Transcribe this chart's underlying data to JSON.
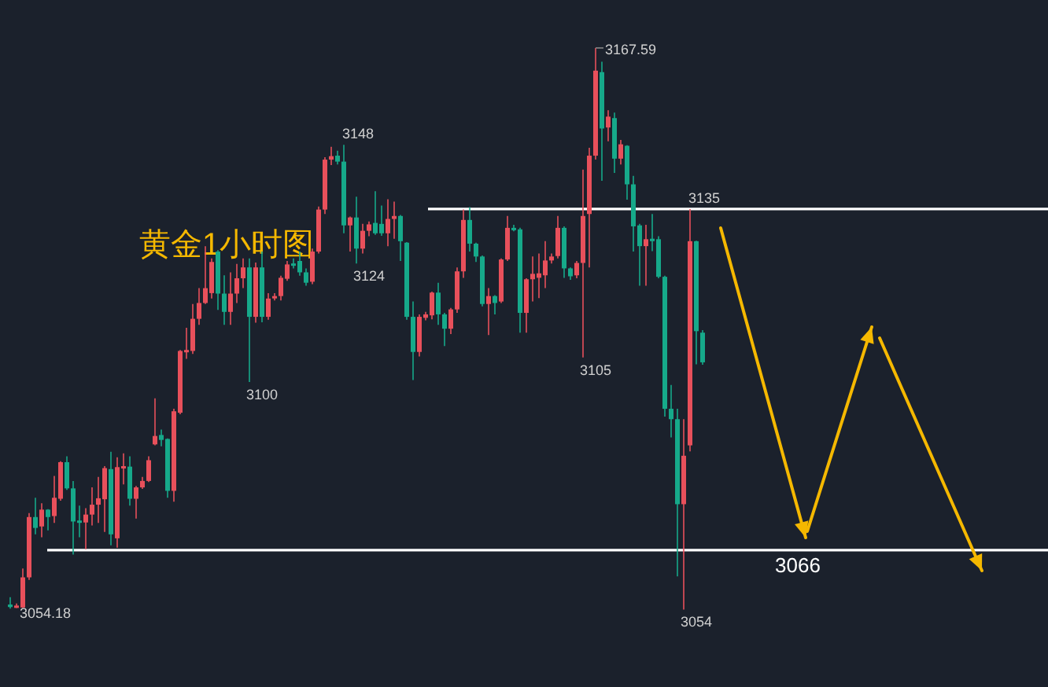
{
  "chart_data": {
    "type": "candlestick",
    "title": "黄金1小时图",
    "categories": [
      null,
      null,
      null,
      null,
      null,
      null,
      null,
      null,
      null,
      null,
      null,
      null,
      null,
      null,
      null,
      null,
      null,
      null,
      null,
      null,
      null,
      null,
      null,
      null,
      null,
      null,
      null,
      null,
      null,
      null,
      null,
      null,
      null,
      null,
      null,
      null,
      null,
      null,
      null,
      null,
      null,
      null,
      null,
      null,
      null,
      null,
      null,
      null,
      null,
      null,
      null,
      null,
      null,
      null,
      null,
      null,
      null,
      null,
      null,
      null,
      null,
      null,
      null,
      null,
      null,
      null,
      null,
      null,
      null,
      null,
      null,
      null,
      null,
      null,
      null,
      null,
      null,
      null,
      null,
      null,
      null,
      null,
      null,
      null,
      null,
      null,
      null,
      null,
      null,
      null,
      null,
      null,
      null,
      null,
      null,
      null,
      null,
      null,
      null,
      null,
      null,
      null,
      null,
      null,
      null,
      null,
      null,
      null,
      null,
      null,
      null
    ],
    "ohlc": [
      [
        3055,
        3056.5,
        3054.18,
        3054.5
      ],
      [
        3054.5,
        3055.2,
        3054.3,
        3054.8
      ],
      [
        3054.4,
        3062.3,
        3054.3,
        3060.5
      ],
      [
        3060.5,
        3073.5,
        3060,
        3072.7
      ],
      [
        3072.7,
        3076.6,
        3069.2,
        3070.5
      ],
      [
        3070.8,
        3075.5,
        3068.6,
        3074.2
      ],
      [
        3074.2,
        3074.3,
        3070,
        3072.7
      ],
      [
        3072.9,
        3081,
        3071.5,
        3076.6
      ],
      [
        3076.4,
        3084,
        3076,
        3083.8
      ],
      [
        3083.8,
        3085,
        3078.2,
        3078.5
      ],
      [
        3078.5,
        3080,
        3065.1,
        3071.8
      ],
      [
        3072,
        3075,
        3068.6,
        3071.8
      ],
      [
        3071.6,
        3074.5,
        3066.2,
        3073.2
      ],
      [
        3073.2,
        3078.7,
        3071,
        3075.2
      ],
      [
        3075.2,
        3080.8,
        3071.5,
        3076.5
      ],
      [
        3076.3,
        3083,
        3069.7,
        3082.6
      ],
      [
        3082.4,
        3085.9,
        3067,
        3069.2
      ],
      [
        3068.4,
        3084.8,
        3066.5,
        3082.8
      ],
      [
        3082.8,
        3085.6,
        3079.3,
        3083
      ],
      [
        3082.9,
        3085,
        3075,
        3076.4
      ],
      [
        3076.4,
        3079,
        3072.4,
        3078.7
      ],
      [
        3078.7,
        3080.8,
        3078.4,
        3080
      ],
      [
        3080,
        3085,
        3079.8,
        3084.2
      ],
      [
        3087.4,
        3096.7,
        3087.2,
        3089.1
      ],
      [
        3089.3,
        3090.4,
        3087,
        3088.3
      ],
      [
        3088.5,
        3088.6,
        3076.6,
        3078
      ],
      [
        3078,
        3094.6,
        3075.8,
        3094.1
      ],
      [
        3093.8,
        3106.5,
        3093.5,
        3106.3
      ],
      [
        3106.2,
        3111,
        3104.7,
        3106.5
      ],
      [
        3106.3,
        3115.8,
        3105.7,
        3112.8
      ],
      [
        3112.8,
        3119,
        3111.6,
        3116
      ],
      [
        3116,
        3127.5,
        3115.8,
        3119
      ],
      [
        3118,
        3125,
        3116.9,
        3124.3
      ],
      [
        3126.4,
        3126.7,
        3114.6,
        3117.9
      ],
      [
        3117.9,
        3121.6,
        3111.6,
        3114.2
      ],
      [
        3114.2,
        3122.2,
        3111.6,
        3117.9
      ],
      [
        3117.9,
        3123.9,
        3116,
        3121
      ],
      [
        3121,
        3125,
        3119,
        3123.2
      ],
      [
        3123.2,
        3125,
        3100,
        3113.2
      ],
      [
        3113.2,
        3124.2,
        3112,
        3123.2
      ],
      [
        3123.2,
        3126.4,
        3112.1,
        3113.2
      ],
      [
        3113.2,
        3118,
        3112.6,
        3116.9
      ],
      [
        3117.1,
        3118,
        3116.5,
        3117.4
      ],
      [
        3117.4,
        3121.5,
        3116.5,
        3121.1
      ],
      [
        3120.9,
        3124.5,
        3120.5,
        3123.8
      ],
      [
        3124,
        3125,
        3123,
        3123.6
      ],
      [
        3124.5,
        3126.4,
        3121.5,
        3122.2
      ],
      [
        3122.2,
        3123,
        3119.5,
        3120.1
      ],
      [
        3120.3,
        3127,
        3119.8,
        3126.4
      ],
      [
        3126.4,
        3135.5,
        3126,
        3134.9
      ],
      [
        3134.9,
        3145.5,
        3134,
        3145
      ],
      [
        3145,
        3147.6,
        3143.9,
        3145.7
      ],
      [
        3145.8,
        3146.8,
        3144,
        3144.6
      ],
      [
        3144.6,
        3148,
        3130.1,
        3131.7
      ],
      [
        3131.7,
        3133.5,
        3126.4,
        3133.3
      ],
      [
        3133.3,
        3137.5,
        3124,
        3127
      ],
      [
        3127,
        3132,
        3126,
        3130.6
      ],
      [
        3130.6,
        3132.5,
        3129.5,
        3131.9
      ],
      [
        3132.2,
        3138.6,
        3129.8,
        3130.1
      ],
      [
        3132,
        3135.7,
        3129.6,
        3130.1
      ],
      [
        3130.1,
        3137,
        3127.5,
        3133
      ],
      [
        3133,
        3136.5,
        3129,
        3133.6
      ],
      [
        3133.6,
        3133.8,
        3124.5,
        3128.5
      ],
      [
        3128.2,
        3128.3,
        3112.6,
        3113.2
      ],
      [
        3113.2,
        3116.3,
        3100.4,
        3106.1
      ],
      [
        3106.1,
        3113.7,
        3105.2,
        3113.2
      ],
      [
        3113,
        3114.2,
        3112.5,
        3113.7
      ],
      [
        3113.5,
        3118.3,
        3112.7,
        3118.1
      ],
      [
        3118.1,
        3120.1,
        3111.6,
        3113.7
      ],
      [
        3113.7,
        3114,
        3107.3,
        3110.8
      ],
      [
        3110.8,
        3115,
        3109.7,
        3114.7
      ],
      [
        3114.7,
        3123.2,
        3114,
        3122.4
      ],
      [
        3122.4,
        3134.9,
        3121.1,
        3132.8
      ],
      [
        3132.8,
        3135.4,
        3126.4,
        3128
      ],
      [
        3128,
        3128.2,
        3124.3,
        3125.4
      ],
      [
        3125.4,
        3125.6,
        3115.3,
        3115.8
      ],
      [
        3115.8,
        3119,
        3109.5,
        3117.4
      ],
      [
        3117.4,
        3117.6,
        3113.7,
        3116
      ],
      [
        3116.3,
        3125,
        3116,
        3124.8
      ],
      [
        3124.8,
        3133.6,
        3124.5,
        3131.2
      ],
      [
        3131.2,
        3131.8,
        3130.5,
        3130.9
      ],
      [
        3130.9,
        3131.2,
        3110,
        3114
      ],
      [
        3114,
        3121,
        3110,
        3120.8
      ],
      [
        3120.8,
        3125.4,
        3116.3,
        3121.9
      ],
      [
        3121.1,
        3126,
        3117,
        3122
      ],
      [
        3121.6,
        3128.5,
        3119,
        3124.6
      ],
      [
        3124.6,
        3126,
        3124,
        3125.4
      ],
      [
        3125.5,
        3133.6,
        3125,
        3131.2
      ],
      [
        3131.2,
        3131.5,
        3121.1,
        3123
      ],
      [
        3123,
        3123.2,
        3120.7,
        3121.4
      ],
      [
        3121.6,
        3124.5,
        3121,
        3124.1
      ],
      [
        3124.1,
        3143,
        3105,
        3133.6
      ],
      [
        3134,
        3147.4,
        3123.2,
        3145.8
      ],
      [
        3145.8,
        3167.59,
        3145,
        3163
      ],
      [
        3162.7,
        3164.8,
        3140.7,
        3151.3
      ],
      [
        3151.5,
        3155,
        3148.7,
        3153.7
      ],
      [
        3153.4,
        3154.5,
        3142.3,
        3145.2
      ],
      [
        3145.2,
        3149,
        3144,
        3148.1
      ],
      [
        3147.8,
        3147.9,
        3136.9,
        3140
      ],
      [
        3140,
        3141.7,
        3126.4,
        3131.5
      ],
      [
        3131.7,
        3132,
        3119.5,
        3127.5
      ],
      [
        3127.5,
        3131.8,
        3119.5,
        3128.9
      ],
      [
        3129,
        3134,
        3126.5,
        3128.5
      ],
      [
        3128.9,
        3129.5,
        3121,
        3121.3
      ],
      [
        3121.3,
        3121.5,
        3093,
        3094.6
      ],
      [
        3094.6,
        3099.4,
        3088.8,
        3092.5
      ],
      [
        3092.5,
        3094.6,
        3060.7,
        3075.3
      ],
      [
        3075.3,
        3092.5,
        3054,
        3085.1
      ],
      [
        3087.2,
        3135,
        3086,
        3128.5
      ],
      [
        3128.5,
        3128.6,
        3103.6,
        3110.3
      ],
      [
        3110,
        3110.5,
        3103.5,
        3104
      ]
    ],
    "ref_lines": [
      {
        "axis": "y",
        "value": 3135,
        "color": "#ffffff"
      },
      {
        "axis": "y",
        "value": 3066,
        "label": "3066",
        "color": "#ffffff"
      }
    ],
    "annotations": [
      "3054.18",
      "3100",
      "3148",
      "3124",
      "3105",
      "3167.59",
      "3135",
      "3054"
    ]
  }
}
